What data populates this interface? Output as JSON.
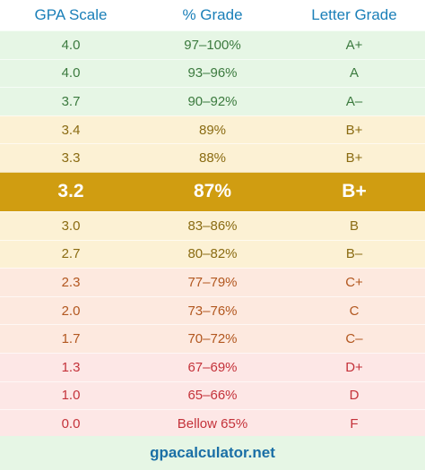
{
  "header": {
    "gpa_label": "GPA Scale",
    "percent_label": "% Grade",
    "letter_label": "Letter Grade"
  },
  "rows": [
    {
      "gpa": "4.0",
      "percent": "97–100%",
      "letter": "A+",
      "tone": "green"
    },
    {
      "gpa": "4.0",
      "percent": "93–96%",
      "letter": "A",
      "tone": "green"
    },
    {
      "gpa": "3.7",
      "percent": "90–92%",
      "letter": "A–",
      "tone": "green"
    },
    {
      "gpa": "3.4",
      "percent": "89%",
      "letter": "B+",
      "tone": "yellow"
    },
    {
      "gpa": "3.3",
      "percent": "88%",
      "letter": "B+",
      "tone": "yellow"
    },
    {
      "gpa": "3.2",
      "percent": "87%",
      "letter": "B+",
      "tone": "highlight"
    },
    {
      "gpa": "3.0",
      "percent": "83–86%",
      "letter": "B",
      "tone": "yellow"
    },
    {
      "gpa": "2.7",
      "percent": "80–82%",
      "letter": "B–",
      "tone": "yellow"
    },
    {
      "gpa": "2.3",
      "percent": "77–79%",
      "letter": "C+",
      "tone": "orange"
    },
    {
      "gpa": "2.0",
      "percent": "73–76%",
      "letter": "C",
      "tone": "orange"
    },
    {
      "gpa": "1.7",
      "percent": "70–72%",
      "letter": "C–",
      "tone": "orange"
    },
    {
      "gpa": "1.3",
      "percent": "67–69%",
      "letter": "D+",
      "tone": "red"
    },
    {
      "gpa": "1.0",
      "percent": "65–66%",
      "letter": "D",
      "tone": "red"
    },
    {
      "gpa": "0.0",
      "percent": "Bellow 65%",
      "letter": "F",
      "tone": "red"
    }
  ],
  "footer": {
    "site": "gpacalculator.net"
  },
  "colors": {
    "header_text": "#1a7fb8",
    "highlight_bg": "#d09d11",
    "green_text": "#3b7a3e",
    "yellow_text": "#8a6b12",
    "orange_text": "#b2571f",
    "red_text": "#c4323a"
  }
}
